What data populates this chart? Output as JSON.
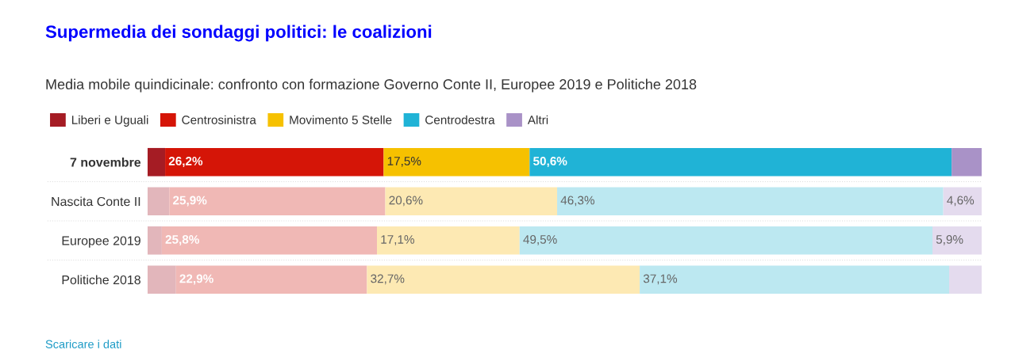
{
  "chart_data": {
    "type": "bar",
    "orientation": "horizontal",
    "stacked": true,
    "title": "Supermedia dei sondaggi politici: le coalizioni",
    "subtitle": "Media mobile quindicinale: confronto con formazione Governo Conte II, Europee 2019 e Politiche 2018",
    "categories": [
      "7 novembre",
      "Nascita Conte II",
      "Europee 2019",
      "Politiche 2018"
    ],
    "xlim": [
      0,
      100
    ],
    "tick_labels": "y",
    "grid": false,
    "legend": "top left",
    "series": [
      {
        "name": "Liberi e Uguali",
        "color": "#a51c24",
        "colors": [
          "#a51c24",
          "#e2b6bb",
          "#e2b6bb",
          "#e2b6bb"
        ],
        "values": [
          2.1,
          2.6,
          1.7,
          3.4
        ],
        "value_labels": [
          null,
          null,
          null,
          null
        ]
      },
      {
        "name": "Centrosinistra",
        "color": "#d51507",
        "colors": [
          "#d51507",
          "#f0b8b5",
          "#f0b8b5",
          "#f0b8b5"
        ],
        "values": [
          26.2,
          25.9,
          25.8,
          22.9
        ],
        "value_labels": [
          "26,2%",
          "25,9%",
          "25,8%",
          "22,9%"
        ]
      },
      {
        "name": "Movimento 5 Stelle",
        "color": "#f6c100",
        "colors": [
          "#f6c100",
          "#fde9b3",
          "#fde9b3",
          "#fde9b3"
        ],
        "values": [
          17.5,
          20.6,
          17.1,
          32.7
        ],
        "value_labels": [
          "17,5%",
          "20,6%",
          "17,1%",
          "32,7%"
        ]
      },
      {
        "name": "Centrodestra",
        "color": "#20b3d6",
        "colors": [
          "#20b3d6",
          "#bce8f1",
          "#bce8f1",
          "#bce8f1"
        ],
        "values": [
          50.6,
          46.3,
          49.5,
          37.1
        ],
        "value_labels": [
          "50,6%",
          "46,3%",
          "49,5%",
          "37,1%"
        ]
      },
      {
        "name": "Altri",
        "color": "#a992c7",
        "colors": [
          "#a992c7",
          "#e4dbee",
          "#e4dbee",
          "#e4dbee"
        ],
        "values": [
          3.6,
          4.6,
          5.9,
          3.9
        ],
        "value_labels": [
          null,
          "4,6%",
          "5,9%",
          null
        ]
      }
    ],
    "annotations": [
      "Scaricare i dati"
    ]
  }
}
